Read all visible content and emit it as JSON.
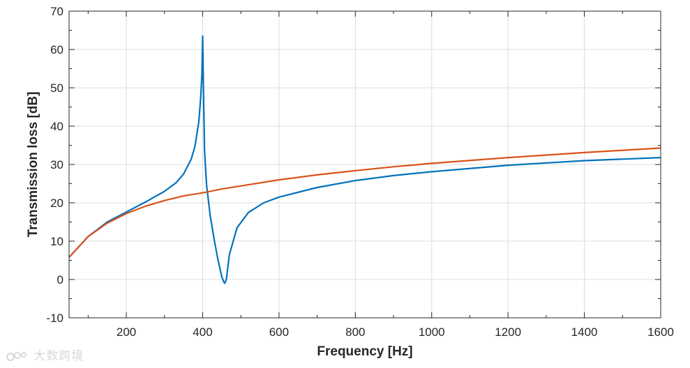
{
  "chart_data": {
    "type": "line",
    "xlabel": "Frequency [Hz]",
    "ylabel": "Transmission loss [dB]",
    "xlim": [
      50,
      1600
    ],
    "ylim": [
      -10,
      70
    ],
    "xticks": [
      200,
      400,
      600,
      800,
      1000,
      1200,
      1400,
      1600
    ],
    "yticks": [
      -10,
      0,
      10,
      20,
      30,
      40,
      50,
      60,
      70
    ],
    "grid": true,
    "series": [
      {
        "color": "#0072BD",
        "x": [
          50,
          100,
          150,
          200,
          250,
          300,
          330,
          350,
          370,
          380,
          390,
          395,
          398,
          400,
          402,
          405,
          410,
          420,
          430,
          440,
          450,
          455,
          458,
          462,
          470,
          490,
          520,
          560,
          600,
          700,
          800,
          900,
          1000,
          1200,
          1400,
          1600
        ],
        "y": [
          5.8,
          11.2,
          15.0,
          17.6,
          20.2,
          23.0,
          25.2,
          27.5,
          31.4,
          34.8,
          41.2,
          47.5,
          53.5,
          63.5,
          50.0,
          33.5,
          24.8,
          16.5,
          10.5,
          5.2,
          0.8,
          -0.6,
          -1.0,
          0.0,
          6.5,
          13.5,
          17.5,
          20.0,
          21.5,
          24.0,
          25.8,
          27.1,
          28.1,
          29.8,
          31.0,
          31.8
        ]
      },
      {
        "color": "#D95319",
        "x": [
          50,
          100,
          150,
          200,
          250,
          300,
          350,
          400,
          450,
          500,
          600,
          700,
          800,
          900,
          1000,
          1200,
          1400,
          1600
        ],
        "y": [
          5.8,
          11.2,
          14.7,
          17.2,
          19.1,
          20.6,
          21.8,
          22.6,
          23.6,
          24.4,
          26.0,
          27.3,
          28.4,
          29.4,
          30.3,
          31.8,
          33.1,
          34.3
        ]
      }
    ]
  },
  "watermark": {
    "text": "大数跨境"
  }
}
